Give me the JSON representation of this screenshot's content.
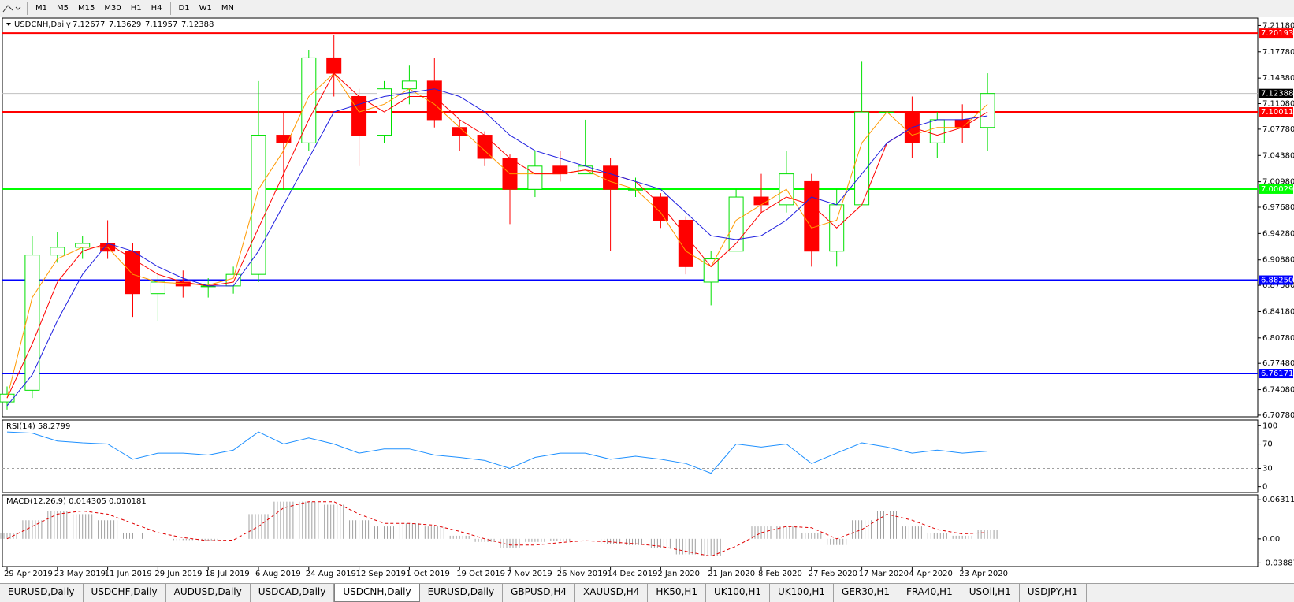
{
  "toolbar": {
    "timeframes": [
      "M1",
      "M5",
      "M15",
      "M30",
      "H1",
      "H4",
      "D1",
      "W1",
      "MN"
    ]
  },
  "chart_data": [
    {
      "type": "candlestick",
      "title": "USDCNH,Daily",
      "header_values": [
        7.12677,
        7.13629,
        7.11957,
        7.12388
      ],
      "categories": [
        "29 Apr 2019",
        null,
        "23 May 2019",
        null,
        "11 Jun 2019",
        null,
        "29 Jun 2019",
        null,
        "18 Jul 2019",
        null,
        "6 Aug 2019",
        null,
        "24 Aug 2019",
        null,
        "12 Sep 2019",
        null,
        "1 Oct 2019",
        null,
        "19 Oct 2019",
        null,
        "7 Nov 2019",
        null,
        "26 Nov 2019",
        null,
        "14 Dec 2019",
        null,
        "2 Jan 2020",
        null,
        "21 Jan 2020",
        null,
        "8 Feb 2020",
        null,
        "27 Feb 2020",
        null,
        "17 Mar 2020",
        null,
        "4 Apr 2020",
        null,
        "23 Apr 2020",
        null
      ],
      "open": [
        6.725,
        6.74,
        6.915,
        6.925,
        6.93,
        6.92,
        6.865,
        6.88,
        6.875,
        6.875,
        6.89,
        7.07,
        7.06,
        7.17,
        7.12,
        7.07,
        7.13,
        7.14,
        7.08,
        7.07,
        7.04,
        7.0,
        7.03,
        7.02,
        7.03,
        7.0,
        6.99,
        6.96,
        6.88,
        6.92,
        6.99,
        6.98,
        7.01,
        6.92,
        6.98,
        7.1,
        7.1,
        7.06,
        7.09,
        7.08
      ],
      "high": [
        6.745,
        6.94,
        6.945,
        6.94,
        6.96,
        6.93,
        6.89,
        6.895,
        6.885,
        6.9,
        7.14,
        7.1,
        7.18,
        7.2,
        7.13,
        7.14,
        7.16,
        7.17,
        7.09,
        7.075,
        7.045,
        7.05,
        7.05,
        7.09,
        7.04,
        7.015,
        6.995,
        6.965,
        6.92,
        7.0,
        7.02,
        7.05,
        7.02,
        7.0,
        7.165,
        7.15,
        7.12,
        7.1,
        7.11,
        7.15
      ],
      "low": [
        6.715,
        6.73,
        6.905,
        6.91,
        6.91,
        6.835,
        6.83,
        6.86,
        6.86,
        6.865,
        6.88,
        7.0,
        7.05,
        7.12,
        7.03,
        7.06,
        7.11,
        7.08,
        7.05,
        7.03,
        6.955,
        6.99,
        7.01,
        7.02,
        6.92,
        6.99,
        6.95,
        6.89,
        6.85,
        6.92,
        6.97,
        6.97,
        6.9,
        6.9,
        6.98,
        7.07,
        7.04,
        7.04,
        7.06,
        7.05
      ],
      "close": [
        6.735,
        6.915,
        6.925,
        6.93,
        6.92,
        6.865,
        6.88,
        6.875,
        6.875,
        6.89,
        7.07,
        7.06,
        7.17,
        7.15,
        7.07,
        7.13,
        7.14,
        7.09,
        7.07,
        7.04,
        7.0,
        7.03,
        7.02,
        7.03,
        7.0,
        7.0,
        6.96,
        6.9,
        6.91,
        6.99,
        6.98,
        7.02,
        6.92,
        6.98,
        7.1,
        7.1,
        7.06,
        7.09,
        7.08,
        7.12388
      ],
      "up_color": "#00e000",
      "down_color": "#ff0000",
      "series": [
        {
          "color": "#ff9900",
          "values": [
            6.73,
            6.86,
            6.91,
            6.925,
            6.925,
            6.89,
            6.88,
            6.878,
            6.876,
            6.885,
            7.0,
            7.05,
            7.12,
            7.15,
            7.1,
            7.11,
            7.13,
            7.11,
            7.08,
            7.05,
            7.02,
            7.02,
            7.02,
            7.025,
            7.01,
            7.0,
            6.97,
            6.92,
            6.9,
            6.96,
            6.98,
            7.0,
            6.95,
            6.96,
            7.06,
            7.1,
            7.07,
            7.08,
            7.08,
            7.11
          ]
        },
        {
          "color": "#ff0000",
          "values": [
            6.73,
            6.8,
            6.88,
            6.92,
            6.93,
            6.91,
            6.89,
            6.88,
            6.875,
            6.88,
            6.95,
            7.02,
            7.09,
            7.15,
            7.12,
            7.1,
            7.12,
            7.12,
            7.09,
            7.07,
            7.04,
            7.02,
            7.02,
            7.025,
            7.02,
            7.01,
            6.98,
            6.94,
            6.9,
            6.93,
            6.97,
            6.99,
            6.98,
            6.95,
            6.98,
            7.06,
            7.08,
            7.07,
            7.08,
            7.1
          ]
        },
        {
          "color": "#2020e0",
          "values": [
            6.72,
            6.76,
            6.83,
            6.89,
            6.93,
            6.92,
            6.9,
            6.885,
            6.875,
            6.875,
            6.92,
            6.98,
            7.04,
            7.1,
            7.11,
            7.12,
            7.125,
            7.13,
            7.12,
            7.1,
            7.07,
            7.05,
            7.04,
            7.03,
            7.02,
            7.01,
            7.0,
            6.97,
            6.94,
            6.935,
            6.94,
            6.96,
            6.99,
            6.98,
            7.02,
            7.06,
            7.08,
            7.09,
            7.09,
            7.095
          ]
        }
      ],
      "levels": [
        {
          "value": 7.20193,
          "color": "#ff0000"
        },
        {
          "value": 7.10011,
          "color": "#ff0000"
        },
        {
          "value": 7.00029,
          "color": "#00ff00"
        },
        {
          "value": {
            "value": 6.8825,
            "label": "6.88250"
          },
          "color": "#0000ff"
        },
        {
          "value": 6.76171,
          "color": "#0000ff"
        }
      ],
      "last_price": 7.12388,
      "ylim": [
        6.7057,
        7.2214
      ],
      "yticks": [
        {
          "value": 7.2118,
          "label": "7.21180"
        },
        {
          "value": 7.1778,
          "label": "7.17780"
        },
        {
          "value": 7.1438,
          "label": "7.14380"
        },
        {
          "value": 7.1108,
          "label": "7.11080"
        },
        {
          "value": 7.0778,
          "label": "7.07780"
        },
        {
          "value": 7.0438,
          "label": "7.04380"
        },
        {
          "value": 7.0098,
          "label": "7.00980"
        },
        {
          "value": 6.9768,
          "label": "6.97680"
        },
        {
          "value": 6.9428,
          "label": "6.94280"
        },
        {
          "value": 6.9088,
          "label": "6.90880"
        },
        {
          "value": 6.8758,
          "label": "6.87580"
        },
        {
          "value": 6.8418,
          "label": "6.84180"
        },
        {
          "value": 6.8078,
          "label": "6.80780"
        },
        {
          "value": 6.7748,
          "label": "6.77480"
        },
        {
          "value": 6.7408,
          "label": "6.74080"
        },
        {
          "value": 6.7078,
          "label": "6.70780"
        }
      ]
    },
    {
      "type": "line",
      "title": "RSI(14) 58.2799",
      "color": "#1e90ff",
      "values": [
        90,
        88,
        75,
        72,
        70,
        45,
        55,
        55,
        52,
        60,
        90,
        70,
        80,
        70,
        55,
        62,
        62,
        52,
        48,
        43,
        30,
        48,
        55,
        55,
        45,
        50,
        45,
        38,
        22,
        70,
        65,
        70,
        38,
        55,
        72,
        65,
        55,
        60,
        55,
        58.2799
      ],
      "levels": [
        70,
        30
      ],
      "ylim": [
        -9.5,
        109.5
      ],
      "yticks": [
        100,
        70,
        30,
        0
      ]
    },
    {
      "type": "macd",
      "title": "MACD(12,26,9) 0.014305 0.010181",
      "color": "#a0a0a0",
      "signal_color": "#e00000",
      "values": [
        0.01,
        0.03,
        0.045,
        0.04,
        0.03,
        0.01,
        0.0,
        -0.002,
        -0.003,
        0.0,
        0.04,
        0.06,
        0.06,
        0.055,
        0.03,
        0.02,
        0.025,
        0.02,
        0.005,
        -0.005,
        -0.015,
        -0.005,
        -0.003,
        0.0,
        -0.008,
        -0.01,
        -0.015,
        -0.025,
        -0.028,
        0.0,
        0.02,
        0.02,
        0.01,
        -0.01,
        0.03,
        0.045,
        0.02,
        0.01,
        0.005,
        0.014305
      ],
      "signal": [
        0.0,
        0.02,
        0.04,
        0.045,
        0.04,
        0.025,
        0.01,
        0.002,
        -0.003,
        -0.002,
        0.02,
        0.05,
        0.06,
        0.06,
        0.04,
        0.025,
        0.025,
        0.022,
        0.012,
        0.0,
        -0.01,
        -0.01,
        -0.006,
        -0.003,
        -0.005,
        -0.008,
        -0.012,
        -0.02,
        -0.028,
        -0.012,
        0.01,
        0.02,
        0.018,
        0.0,
        0.015,
        0.04,
        0.03,
        0.015,
        0.008,
        0.010181
      ],
      "ylim": [
        -0.0447,
        0.071
      ],
      "yticks": [
        0.063113,
        {
          "value": 0,
          "label": "0.00"
        },
        -0.038872
      ]
    }
  ],
  "tabs": [
    "EURUSD,Daily",
    "USDCHF,Daily",
    "AUDUSD,Daily",
    "USDCAD,Daily",
    "USDCNH,Daily",
    "EURUSD,Daily",
    "GBPUSD,H4",
    "XAUUSD,H4",
    "HK50,H1",
    "UK100,H1",
    "UK100,H1",
    "GER30,H1",
    "FRA40,H1",
    "USOil,H1",
    "USDJPY,H1"
  ],
  "active_tab": 4
}
